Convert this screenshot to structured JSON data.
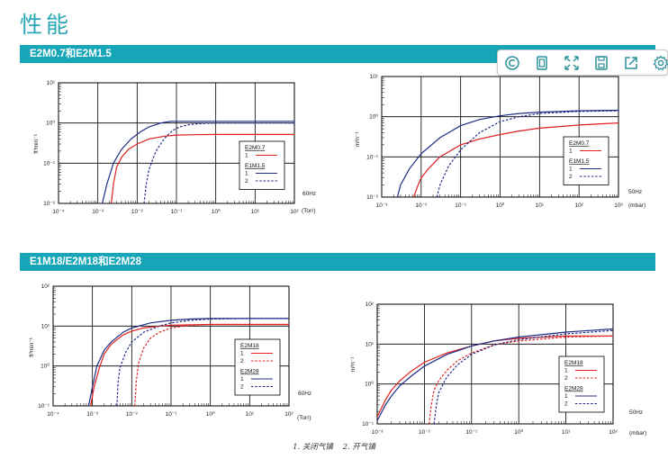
{
  "page": {
    "title": "性能",
    "section1_title": "E2M0.7和E2M1.5",
    "section2_title": "E1M18/E2M18和E2M28",
    "caption": [
      "1. 关闭气镇",
      "2. 开气镇"
    ]
  },
  "toolbar": [
    {
      "icon": "copyright-icon"
    },
    {
      "icon": "fit-page-icon"
    },
    {
      "icon": "expand-icon"
    },
    {
      "icon": "save-icon"
    },
    {
      "icon": "share-icon"
    },
    {
      "icon": "settings-icon"
    }
  ],
  "colors": {
    "accent": "#17a6b8",
    "series1": "#e02020",
    "series2": "#1f2c86",
    "grid": "#000000"
  },
  "chart_data": [
    {
      "type": "line",
      "xscale": "log",
      "yscale": "log",
      "xlim": [
        0.0001,
        100
      ],
      "ylim": [
        0.01,
        10
      ],
      "xticks": [
        "10⁻⁴",
        "10⁻³",
        "10⁻²",
        "10⁻¹",
        "10⁰",
        "10¹",
        "10²"
      ],
      "yticks": [
        "10¹",
        "10⁰",
        "10⁻¹",
        "10⁻²"
      ],
      "ylabel": "ft³min⁻¹",
      "xunit": "(Torr)",
      "freq": "60Hz",
      "legend": [
        {
          "group": "E2M0.7",
          "items": [
            {
              "num": "1",
              "series": "E2M0.7-1"
            }
          ]
        },
        {
          "group": "E1M1.5",
          "items": [
            {
              "num": "1",
              "series": "E2M1.5-1"
            },
            {
              "num": "2",
              "series": "E2M1.5-2"
            }
          ]
        }
      ],
      "series": [
        {
          "name": "E2M0.7-1",
          "color": "#e02020",
          "dash": false,
          "x": [
            0.0022,
            0.0025,
            0.003,
            0.004,
            0.006,
            0.01,
            0.02,
            0.05,
            0.1,
            0.3,
            1,
            10,
            100
          ],
          "y": [
            0.01,
            0.03,
            0.08,
            0.14,
            0.22,
            0.3,
            0.4,
            0.47,
            0.5,
            0.51,
            0.52,
            0.52,
            0.52
          ]
        },
        {
          "name": "E2M1.5-1",
          "color": "#1f2c86",
          "dash": false,
          "x": [
            0.0013,
            0.0017,
            0.0025,
            0.004,
            0.007,
            0.012,
            0.02,
            0.04,
            0.07,
            0.1,
            1,
            10,
            100
          ],
          "y": [
            0.01,
            0.03,
            0.1,
            0.22,
            0.4,
            0.6,
            0.8,
            1.0,
            1.1,
            1.1,
            1.1,
            1.1,
            1.1
          ]
        },
        {
          "name": "E2M1.5-2",
          "color": "#1f2c86",
          "dash": true,
          "x": [
            0.015,
            0.017,
            0.02,
            0.03,
            0.05,
            0.08,
            0.12,
            0.2,
            0.3,
            0.5,
            1,
            10,
            100
          ],
          "y": [
            0.01,
            0.03,
            0.07,
            0.2,
            0.42,
            0.65,
            0.8,
            0.9,
            0.95,
            0.98,
            1.0,
            1.0,
            1.0
          ]
        }
      ]
    },
    {
      "type": "line",
      "xscale": "log",
      "yscale": "log",
      "xlim": [
        0.001,
        1000
      ],
      "ylim": [
        0.01,
        10
      ],
      "xticks": [
        "10⁻³",
        "10⁻²",
        "10⁻¹",
        "10⁰",
        "10¹",
        "10²",
        "10³"
      ],
      "yticks": [
        "10¹",
        "10⁰",
        "10⁻¹",
        "10⁻²"
      ],
      "ylabel": "m³h⁻¹",
      "xunit": "(mbar)",
      "freq": "50Hz",
      "legend": [
        {
          "group": "E2M0.7",
          "items": [
            {
              "num": "1",
              "series": "E2M0.7-1"
            }
          ]
        },
        {
          "group": "E1M1.5",
          "items": [
            {
              "num": "1",
              "series": "E2M1.5-1"
            },
            {
              "num": "2",
              "series": "E2M1.5-2"
            }
          ]
        }
      ],
      "series": [
        {
          "name": "E2M0.7-1",
          "color": "#e02020",
          "dash": false,
          "x": [
            0.0065,
            0.008,
            0.01,
            0.015,
            0.03,
            0.1,
            0.3,
            1,
            3,
            10,
            100,
            1000
          ],
          "y": [
            0.01,
            0.018,
            0.03,
            0.05,
            0.1,
            0.2,
            0.28,
            0.36,
            0.44,
            0.52,
            0.62,
            0.7
          ]
        },
        {
          "name": "E2M1.5-1",
          "color": "#1f2c86",
          "dash": false,
          "x": [
            0.0025,
            0.003,
            0.005,
            0.01,
            0.03,
            0.1,
            0.3,
            1,
            3,
            10,
            100,
            1000
          ],
          "y": [
            0.01,
            0.02,
            0.05,
            0.12,
            0.3,
            0.6,
            0.85,
            1.05,
            1.2,
            1.3,
            1.4,
            1.45
          ]
        },
        {
          "name": "E2M1.5-2",
          "color": "#1f2c86",
          "dash": true,
          "x": [
            0.025,
            0.03,
            0.05,
            0.1,
            0.3,
            1,
            3,
            10,
            100,
            1000
          ],
          "y": [
            0.01,
            0.02,
            0.06,
            0.15,
            0.4,
            0.75,
            1.0,
            1.2,
            1.35,
            1.4
          ]
        }
      ]
    },
    {
      "type": "line",
      "xscale": "log",
      "yscale": "log",
      "xlim": [
        0.0001,
        100
      ],
      "ylim": [
        0.1,
        100
      ],
      "xticks": [
        "10⁻⁴",
        "10⁻³",
        "10⁻²",
        "10⁻¹",
        "10⁰",
        "10¹",
        "10²"
      ],
      "yticks": [
        "10²",
        "10¹",
        "10⁰",
        "10⁻¹"
      ],
      "ylabel": "ft³min⁻¹",
      "xunit": "(Torr)",
      "freq": "60Hz",
      "legend": [
        {
          "group": "E2M18",
          "items": [
            {
              "num": "1",
              "series": "E2M18-1"
            },
            {
              "num": "2",
              "series": "E2M18-2"
            }
          ]
        },
        {
          "group": "E2M28",
          "items": [
            {
              "num": "1",
              "series": "E2M28-1"
            },
            {
              "num": "2",
              "series": "E2M28-2"
            }
          ]
        }
      ],
      "series": [
        {
          "name": "E2M18-1",
          "color": "#e02020",
          "dash": false,
          "x": [
            0.0009,
            0.0011,
            0.0015,
            0.002,
            0.003,
            0.006,
            0.01,
            0.02,
            0.05,
            0.1,
            1,
            10,
            100
          ],
          "y": [
            0.1,
            0.3,
            0.9,
            2,
            3.5,
            6,
            7.5,
            9,
            10,
            10.5,
            11,
            11,
            11
          ]
        },
        {
          "name": "E2M18-2",
          "color": "#e02020",
          "dash": true,
          "x": [
            0.012,
            0.013,
            0.015,
            0.02,
            0.03,
            0.05,
            0.1,
            0.3,
            1,
            10,
            100
          ],
          "y": [
            0.1,
            0.4,
            1.2,
            2.8,
            5,
            7,
            9,
            10.5,
            11,
            11,
            11
          ]
        },
        {
          "name": "E2M28-1",
          "color": "#1f2c86",
          "dash": false,
          "x": [
            0.0008,
            0.001,
            0.0013,
            0.002,
            0.003,
            0.006,
            0.01,
            0.03,
            0.1,
            0.3,
            1,
            10,
            100
          ],
          "y": [
            0.1,
            0.3,
            1,
            2.5,
            4,
            7,
            9,
            12,
            14,
            15,
            15.5,
            15.5,
            15.5
          ]
        },
        {
          "name": "E2M28-2",
          "color": "#1f2c86",
          "dash": true,
          "x": [
            0.0042,
            0.0045,
            0.005,
            0.007,
            0.01,
            0.02,
            0.05,
            0.1,
            0.3,
            1,
            10,
            100
          ],
          "y": [
            0.1,
            0.4,
            0.9,
            2.2,
            4,
            7,
            10,
            12,
            14,
            15,
            15.5,
            15.5
          ]
        }
      ]
    },
    {
      "type": "line",
      "xscale": "log",
      "yscale": "log",
      "xlim": [
        0.001,
        100
      ],
      "ylim": [
        0.1,
        100
      ],
      "xticks": [
        "10⁻³",
        "10⁻²",
        "10⁻¹",
        "10⁰",
        "10¹",
        "10²"
      ],
      "yticks": [
        "10²",
        "10¹",
        "10⁰",
        "10⁻¹"
      ],
      "ylabel": "m³h⁻¹",
      "xunit": "(mbar)",
      "freq": "50Hz",
      "legend": [
        {
          "group": "E2M18",
          "items": [
            {
              "num": "1",
              "series": "E2M18-1"
            },
            {
              "num": "2",
              "series": "E2M18-2"
            }
          ]
        },
        {
          "group": "E2M28",
          "items": [
            {
              "num": "1",
              "series": "E2M28-1"
            },
            {
              "num": "2",
              "series": "E2M28-2"
            }
          ]
        }
      ],
      "series": [
        {
          "name": "E2M18-1",
          "color": "#e02020",
          "dash": false,
          "x": [
            0.001,
            0.0015,
            0.002,
            0.003,
            0.005,
            0.01,
            0.03,
            0.1,
            0.3,
            1,
            10,
            100
          ],
          "y": [
            0.15,
            0.4,
            0.7,
            1.2,
            2,
            3.5,
            6,
            9,
            12,
            14,
            16,
            16
          ]
        },
        {
          "name": "E2M18-2",
          "color": "#e02020",
          "dash": true,
          "x": [
            0.0125,
            0.014,
            0.016,
            0.02,
            0.03,
            0.05,
            0.1,
            0.3,
            1,
            10,
            100
          ],
          "y": [
            0.1,
            0.3,
            0.7,
            1.2,
            2.2,
            3.8,
            6,
            9.5,
            12,
            15,
            16
          ]
        },
        {
          "name": "E2M28-1",
          "color": "#1f2c86",
          "dash": false,
          "x": [
            0.001,
            0.0015,
            0.002,
            0.003,
            0.005,
            0.01,
            0.03,
            0.1,
            0.3,
            1,
            10,
            100
          ],
          "y": [
            0.12,
            0.3,
            0.5,
            0.9,
            1.5,
            2.8,
            5.5,
            9,
            12,
            15,
            20,
            24
          ]
        },
        {
          "name": "E2M28-2",
          "color": "#1f2c86",
          "dash": true,
          "x": [
            0.016,
            0.018,
            0.02,
            0.025,
            0.03,
            0.05,
            0.1,
            0.3,
            1,
            10,
            100
          ],
          "y": [
            0.1,
            0.3,
            0.6,
            1,
            1.5,
            3,
            5.5,
            9.5,
            13,
            18,
            22
          ]
        }
      ]
    }
  ]
}
